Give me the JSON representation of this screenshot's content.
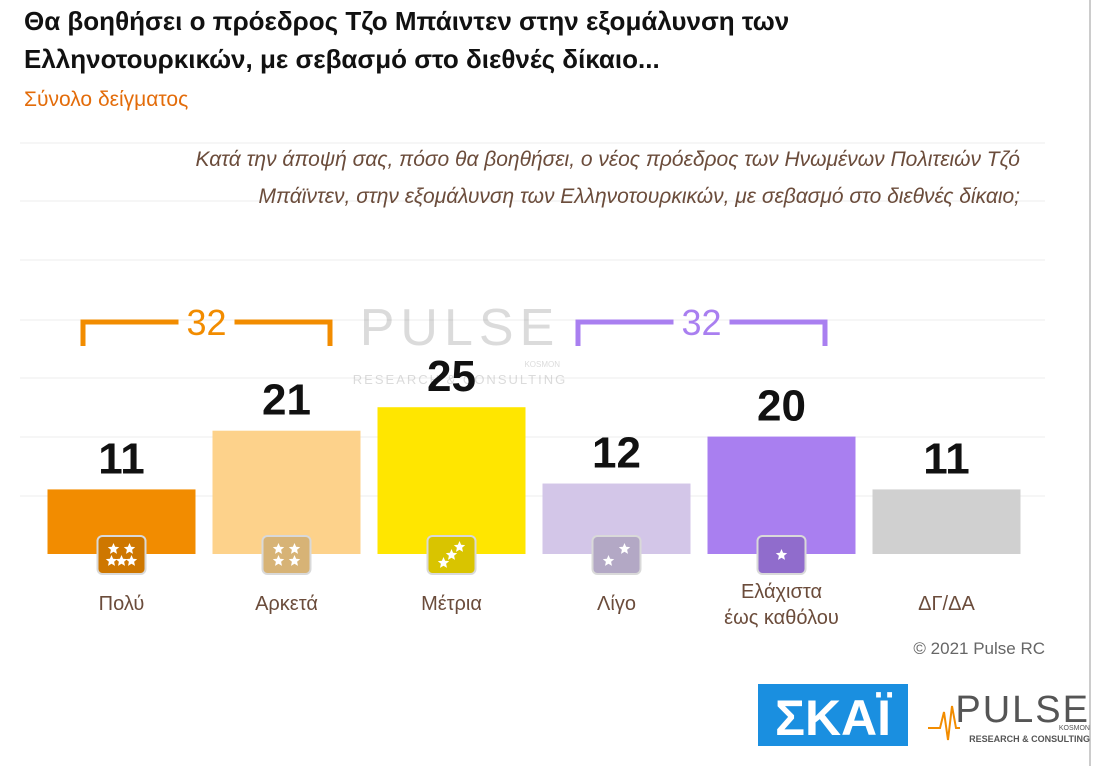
{
  "chart_data": {
    "type": "bar",
    "title": "Θα βοηθήσει ο πρόεδρος Τζο Μπάιντεν στην εξομάλυνση των Ελληνοτουρκικών, με σεβασμό στο διεθνές δίκαιο...",
    "subtitle": "Σύνολο δείγματος",
    "question": "Κατά την άποψή σας, πόσο θα βοηθήσει, ο νέος πρόεδρος των Ηνωμένων Πολιτειών Τζό Μπάϊντεν, στην εξομάλυνση των Ελληνοτουρκικών, με σεβασμό στο διεθνές δίκαιο;",
    "categories": [
      "Πολύ",
      "Αρκετά",
      "Μέτρια",
      "Λίγο",
      "Ελάχιστα\nέως καθόλου",
      "ΔΓ/ΔΑ"
    ],
    "values": [
      11,
      21,
      25,
      12,
      20,
      11
    ],
    "colors": [
      "#f28c00",
      "#fdd28b",
      "#ffe600",
      "#d3c6e8",
      "#a97ff0",
      "#d0d0d0"
    ],
    "ylim": [
      0,
      70
    ],
    "annotations": [
      {
        "text": "32",
        "value": 32,
        "color": "#f28c00",
        "span": [
          0,
          1
        ]
      },
      {
        "text": "32",
        "value": 32,
        "color": "#a97ff0",
        "span": [
          3,
          4
        ]
      }
    ],
    "watermark": {
      "name": "PULSE",
      "sub": "RESEARCH & CONSULTING",
      "tag": "KOSMON"
    },
    "copyright": "© 2021 Pulse RC",
    "logos": {
      "skai": "ΣΚΑΪ",
      "pulse": "PULSE",
      "pulse_sub": "RESEARCH & CONSULTING",
      "pulse_tag": "KOSMON"
    }
  }
}
